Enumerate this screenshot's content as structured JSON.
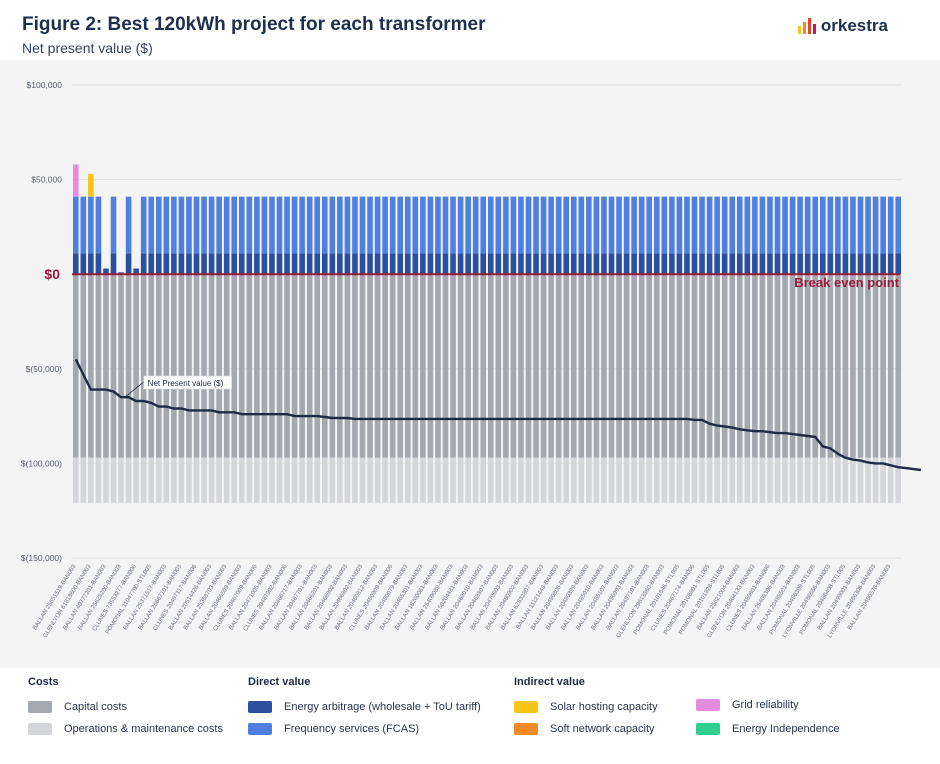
{
  "header": {
    "title": "Figure 2: Best 120kWh project for each transformer",
    "subtitle": "Net present value ($)",
    "logo_text": "orkestra"
  },
  "legend": {
    "groups": [
      {
        "title": "Costs",
        "items": [
          {
            "label": "Capital costs",
            "color": "#a4a8b1"
          },
          {
            "label": "Operations & maintenance costs",
            "color": "#d4d6da"
          }
        ]
      },
      {
        "title": "Direct value",
        "items": [
          {
            "label": "Energy arbitrage (wholesale + ToU tariff)",
            "color": "#2a4f9e"
          },
          {
            "label": "Frequency services (FCAS)",
            "color": "#4f7fe0"
          }
        ]
      },
      {
        "title": "Indirect value",
        "items": [
          {
            "label": "Solar hosting capacity",
            "color": "#f5c518"
          },
          {
            "label": "Soft network capacity",
            "color": "#f08a24"
          }
        ]
      },
      {
        "title": "",
        "items": [
          {
            "label": "Grid reliability",
            "color": "#e48be0"
          },
          {
            "label": "Energy Independence",
            "color": "#2ecf8e"
          }
        ]
      }
    ]
  },
  "chart_data": {
    "type": "bar",
    "stacked": true,
    "ylim": [
      -150000,
      100000
    ],
    "y_tick_labels": [
      "$100,000",
      "$50,000",
      "$0",
      "$(50,000)",
      "$(100,000)",
      "$(150,000)"
    ],
    "y_tick_values": [
      100000,
      50000,
      0,
      -50000,
      -100000,
      -150000
    ],
    "zero_label": "$0",
    "break_even_label": "Break even point",
    "npv_line_label": "Net Present value ($)",
    "capital_cost": -97000,
    "om_cost": -24000,
    "categories": [
      "BALLAN 25651519-BAN003",
      "BALLAN 45411202-BAN003",
      "GLENLYON 61818600-BAN003",
      "BALLAN 23514459-BAN003",
      "BALLAN 40777201-BAN003",
      "LYONVILLE 20484814-BAN003",
      "BALLAN 25628200-BAN003",
      "WHEATSHEAF 20512301-BAN003",
      "CLUNES 73553277-BAN006",
      "CLUNES 20467715-BAN006",
      "POMONAL 11047700-STL005",
      "BALLAN 64637902-BAN003",
      "BALLAN 25371517-BAN003",
      "BALLAN 20465902-BAN003",
      "BALLAN 26667101-BAN003",
      "BALLAN 20467415-BAN003",
      "CLUNES 20467117-BAN006",
      "CLUNES 22013426-BAN006",
      "BALLAN 20514426-BAN003",
      "BALLAN 20516679-BAN003",
      "BALLAN 25388703-BAN003",
      "CLUNES 26667003-BAN006",
      "BALLAN 20466509-BAN003",
      "BALLAN 20498630-BAN003",
      "CLUNES 20467009-BAN006",
      "CLUNES 20488309-BAN006",
      "BALLAN 20471005-BAN003",
      "CLUNES 62351300-BAN006",
      "CLUNES 20487902-BAN006",
      "CLUNES 16442441-BAN006",
      "BALLAN 20466717-BAN003",
      "CLUNES 20480010-BAN006",
      "BALLAN 20487701-BAN003",
      "CLUNES 62050128-BAN006",
      "BALLAN 20466201-BAN003",
      "CLUNES 20485889-BAN006",
      "BALLAN 20466902-BAN003",
      "CLUNES 96100454-BAN006",
      "BALLAN 20486802-BAN003",
      "BALLAN 56661705-BAN003",
      "BALLAN 20480812-BAN003",
      "BALLAN 20485809-BAN003",
      "CLUNES 20480909-BAN006",
      "WHEATSHEAF 20480274-BAN003",
      "BALLAN 20480079-BAN003",
      "BALLAN 20480514-BAN003",
      "BALLAN 20465301-BAN003",
      "BALLAN 20499030-BAN003",
      "BALLAN 18260061-BAN003",
      "BALLAN 20497601-BAN003",
      "BALLAN 25409089-BAN003",
      "BALLAN 20489803-BAN003",
      "BALLAN 50204481-BAN003",
      "WHEATSHEAF 25706099-BAN003",
      "BALLAN 20469010-BAN003",
      "BALLAN 29621019-BAN003",
      "BALLAN 20468807-BAN003",
      "BALLAN 20498909-BAN003",
      "BALLAN 20479603-BAN003",
      "BALLAN 20480401-BAN003",
      "BALLAN 20480902-BAN003",
      "BALLAN 20471007-BAN003",
      "BALLAN 62832807-BAN003",
      "BALLAN 20488204-BAN003",
      "BALLAN 11121448-BAN003",
      "BALLAN 20489508-BAN003",
      "BALLAN 20480808-BAN003",
      "CLUNES 20480504-BAN006",
      "BALLAN 20480399-BAN003",
      "BALLAN 25666001-BAN003",
      "BALLAN 20485910-BAN003",
      "BALLAN 62853147-BAN003",
      "BALLAN 20485107-BAN003",
      "BALLAN 20513101-BAN003",
      "BALLAN 20496993-BAN003",
      "BALLAN 20489977-BAN003",
      "BALLAN 20497101-BAN003",
      "BALLAN 20498809-BAN003",
      "GLENLYON 29613860-BAN003",
      "CLUNES 62508839-BAN006",
      "POMONAL 20101846-STL005",
      "BALLAN 20467409-BAN003",
      "CLUNES 20467174-BAN006",
      "BALLAN 20466001-BAN003",
      "POMONAL 20108801-STL005",
      "BALLAN 20467919-BAN003",
      "POMONAL 20101828-STL005",
      "GLENLYON 14131432-BAN003",
      "BALLAN 25621004-BAN003",
      "POMONAL 26647201-STL005",
      "GLENLYON 20464133-BAN003",
      "BALLAN 20481203-BAN003",
      "CLUNES 20488601-BAN006",
      "WHEATSHEAF 25486105-BAN003",
      "BALLAN 25408306-BAN003",
      "POMONAL 20108299-STL005",
      "BALLAN 20498501-BAN003",
      "BALLAN 20486707-BAN003",
      "POMONAL 20486309-STL005",
      "LYONVILLE 96188801-BAN003",
      "LYONVILLE 20486656-BAN003",
      "POMONAL 20101424-STL005",
      "POMONAL 20486408-STL005",
      "LYONVILLE 20488514-BAN003",
      "BALLAN 20499001-BAN003",
      "BALLAN 20486412-BAN003",
      "LYONVILLE 20486306-BAN003",
      "POMONAL 20486101-STL005",
      "BALLAN 20480578-BAN003",
      "LYONVILLE 20488578-BAN003"
    ],
    "series": [
      {
        "name": "Energy arbitrage (wholesale + ToU tariff)",
        "key": "ea",
        "values": [
          11000,
          11000,
          11000,
          11000,
          3000,
          11000,
          1000,
          11000,
          3000,
          11000,
          11000,
          11000,
          11000,
          11000,
          11000,
          11000,
          11000,
          11000,
          11000,
          11000,
          11000,
          11000,
          11000,
          11000,
          11000,
          11000,
          11000,
          11000,
          11000,
          11000,
          11000,
          11000,
          11000,
          11000,
          11000,
          11000,
          11000,
          11000,
          11000,
          11000,
          11000,
          11000,
          11000,
          11000,
          11000,
          11000,
          11000,
          11000,
          11000,
          11000,
          11000,
          11000,
          11000,
          11000,
          11000,
          11000,
          11000,
          11000,
          11000,
          11000,
          11000,
          11000,
          11000,
          11000,
          11000,
          11000,
          11000,
          11000,
          11000,
          11000,
          11000,
          11000,
          11000,
          11000,
          11000,
          11000,
          11000,
          11000,
          11000,
          11000,
          11000,
          11000,
          11000,
          11000,
          11000,
          11000,
          11000,
          11000,
          11000,
          11000,
          11000,
          11000,
          11000,
          11000,
          11000,
          11000,
          11000,
          11000,
          11000,
          11000,
          11000,
          11000,
          11000,
          11000,
          11000,
          11000,
          11000,
          11000,
          11000,
          11000
        ]
      },
      {
        "name": "Frequency services (FCAS)",
        "key": "fcas",
        "values": [
          30000,
          30000,
          30000,
          30000,
          0,
          30000,
          0,
          30000,
          0,
          30000,
          30000,
          30000,
          30000,
          30000,
          30000,
          30000,
          30000,
          30000,
          30000,
          30000,
          30000,
          30000,
          30000,
          30000,
          30000,
          30000,
          30000,
          30000,
          30000,
          30000,
          30000,
          30000,
          30000,
          30000,
          30000,
          30000,
          30000,
          30000,
          30000,
          30000,
          30000,
          30000,
          30000,
          30000,
          30000,
          30000,
          30000,
          30000,
          30000,
          30000,
          30000,
          30000,
          30000,
          30000,
          30000,
          30000,
          30000,
          30000,
          30000,
          30000,
          30000,
          30000,
          30000,
          30000,
          30000,
          30000,
          30000,
          30000,
          30000,
          30000,
          30000,
          30000,
          30000,
          30000,
          30000,
          30000,
          30000,
          30000,
          30000,
          30000,
          30000,
          30000,
          30000,
          30000,
          30000,
          30000,
          30000,
          30000,
          30000,
          30000,
          30000,
          30000,
          30000,
          30000,
          30000,
          30000,
          30000,
          30000,
          30000,
          30000,
          30000,
          30000,
          30000,
          30000,
          30000,
          30000,
          30000,
          30000,
          30000,
          30000
        ]
      },
      {
        "name": "Solar hosting capacity",
        "key": "solar",
        "values": [
          0,
          0,
          12000,
          0,
          0,
          0,
          0,
          0,
          0,
          0,
          0,
          0,
          0,
          0,
          0,
          0,
          0,
          0,
          0,
          0,
          0,
          0,
          0,
          0,
          0,
          0,
          0,
          0,
          0,
          0,
          0,
          0,
          0,
          0,
          0,
          0,
          0,
          0,
          0,
          0,
          0,
          0,
          0,
          0,
          0,
          0,
          0,
          0,
          0,
          0,
          0,
          0,
          0,
          0,
          0,
          0,
          0,
          0,
          0,
          0,
          0,
          0,
          0,
          0,
          0,
          0,
          0,
          0,
          0,
          0,
          0,
          0,
          0,
          0,
          0,
          0,
          0,
          0,
          0,
          0,
          0,
          0,
          0,
          0,
          0,
          0,
          0,
          0,
          0,
          0,
          0,
          0,
          0,
          0,
          0,
          0,
          0,
          0,
          0,
          0,
          0,
          0,
          0,
          0,
          0,
          0,
          0,
          0,
          0,
          0
        ]
      },
      {
        "name": "Soft network capacity",
        "key": "soft",
        "values": [
          0,
          0,
          0,
          0,
          0,
          0,
          0,
          0,
          0,
          0,
          0,
          0,
          0,
          0,
          0,
          0,
          0,
          0,
          0,
          0,
          0,
          0,
          0,
          0,
          0,
          0,
          0,
          0,
          0,
          0,
          0,
          0,
          0,
          0,
          0,
          0,
          0,
          0,
          0,
          0,
          0,
          0,
          0,
          0,
          0,
          0,
          0,
          0,
          0,
          0,
          0,
          0,
          0,
          0,
          0,
          0,
          0,
          0,
          0,
          0,
          0,
          0,
          0,
          0,
          0,
          0,
          0,
          0,
          0,
          0,
          0,
          0,
          0,
          0,
          0,
          0,
          0,
          0,
          0,
          0,
          0,
          0,
          0,
          0,
          0,
          0,
          0,
          0,
          0,
          0,
          0,
          0,
          0,
          0,
          0,
          0,
          0,
          0,
          0,
          0,
          0,
          0,
          0,
          0,
          0,
          0,
          0,
          0,
          0,
          0
        ]
      },
      {
        "name": "Grid reliability",
        "key": "grid",
        "values": [
          17000,
          0,
          0,
          0,
          0,
          0,
          0,
          0,
          0,
          0,
          0,
          0,
          0,
          0,
          0,
          0,
          0,
          0,
          0,
          0,
          0,
          0,
          0,
          0,
          0,
          0,
          0,
          0,
          0,
          0,
          0,
          0,
          0,
          0,
          0,
          0,
          0,
          0,
          0,
          0,
          0,
          0,
          0,
          0,
          0,
          0,
          0,
          0,
          0,
          0,
          0,
          0,
          0,
          0,
          0,
          0,
          0,
          0,
          0,
          0,
          0,
          0,
          0,
          0,
          0,
          0,
          0,
          0,
          0,
          0,
          0,
          0,
          0,
          0,
          0,
          0,
          0,
          0,
          0,
          0,
          0,
          0,
          0,
          0,
          0,
          0,
          0,
          0,
          0,
          0,
          0,
          0,
          0,
          0,
          0,
          0,
          0,
          0,
          0,
          0,
          0,
          0,
          0,
          0,
          0,
          0,
          0,
          0,
          0,
          0
        ]
      },
      {
        "name": "Energy Independence",
        "key": "ei",
        "values": [
          0,
          0,
          0,
          0,
          0,
          0,
          0,
          0,
          0,
          0,
          0,
          0,
          0,
          0,
          0,
          0,
          0,
          0,
          0,
          0,
          0,
          0,
          0,
          0,
          0,
          0,
          0,
          0,
          0,
          0,
          0,
          0,
          0,
          0,
          0,
          0,
          0,
          0,
          0,
          0,
          0,
          0,
          0,
          0,
          0,
          0,
          0,
          0,
          0,
          0,
          0,
          0,
          0,
          0,
          0,
          0,
          0,
          0,
          0,
          0,
          0,
          0,
          0,
          0,
          0,
          0,
          0,
          0,
          0,
          0,
          0,
          0,
          0,
          0,
          0,
          0,
          0,
          0,
          0,
          0,
          0,
          0,
          0,
          0,
          0,
          0,
          0,
          0,
          0,
          0,
          0,
          0,
          0,
          0,
          0,
          0,
          0,
          0,
          0,
          0,
          0,
          0,
          0,
          0,
          0,
          0,
          0,
          0,
          0,
          0
        ]
      }
    ],
    "npv": [
      -45000,
      -53000,
      -61000,
      -61000,
      -61000,
      -62000,
      -65000,
      -65000,
      -67000,
      -67000,
      -68000,
      -70000,
      -70000,
      -71000,
      -71000,
      -72000,
      -72000,
      -72000,
      -72000,
      -73000,
      -73000,
      -73000,
      -74000,
      -74000,
      -74000,
      -74000,
      -74000,
      -74000,
      -74000,
      -75000,
      -75000,
      -75000,
      -75000,
      -75500,
      -76000,
      -76000,
      -76000,
      -76500,
      -76500,
      -76500,
      -76500,
      -76500,
      -76500,
      -76500,
      -76500,
      -76500,
      -76500,
      -76500,
      -76500,
      -76500,
      -76500,
      -76500,
      -76500,
      -76500,
      -76500,
      -76500,
      -76500,
      -76500,
      -76500,
      -76500,
      -76500,
      -76500,
      -76500,
      -76500,
      -76500,
      -76500,
      -76500,
      -76500,
      -76500,
      -76500,
      -76500,
      -76500,
      -76500,
      -76500,
      -76500,
      -76500,
      -76500,
      -76500,
      -76500,
      -76500,
      -76500,
      -76500,
      -77000,
      -77000,
      -79000,
      -80000,
      -80500,
      -81000,
      -82000,
      -82500,
      -83000,
      -83000,
      -83500,
      -84000,
      -84000,
      -84500,
      -85000,
      -85500,
      -86000,
      -91000,
      -92000,
      -95000,
      -97000,
      -98000,
      -98500,
      -99500,
      -100000,
      -100000,
      -101000,
      -102000,
      -102500,
      -103000,
      -103500
    ]
  }
}
